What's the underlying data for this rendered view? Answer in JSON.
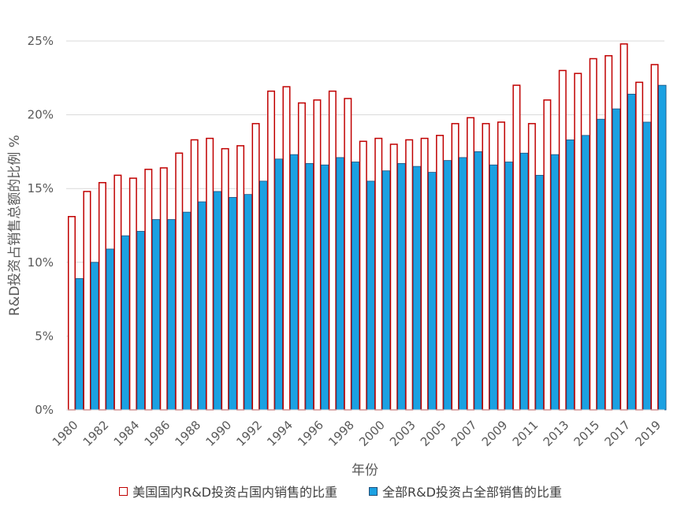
{
  "chart_data": {
    "type": "bar",
    "xlabel": "年份",
    "ylabel": "R&D投资占销售总额的比例 %",
    "ylim": [
      0,
      25
    ],
    "yticks": [
      "0%",
      "5%",
      "10%",
      "15%",
      "20%",
      "25%"
    ],
    "grid": true,
    "legend_position": "bottom",
    "categories": [
      "1980",
      "1981",
      "1982",
      "1983",
      "1984",
      "1985",
      "1986",
      "1987",
      "1988",
      "1989",
      "1990",
      "1991",
      "1992",
      "1993",
      "1994",
      "1995",
      "1996",
      "1997",
      "1998",
      "1999",
      "2000",
      "2002",
      "2003",
      "2004",
      "2005",
      "2006",
      "2007",
      "2008",
      "2009",
      "2010",
      "2011",
      "2012",
      "2013",
      "2014",
      "2015",
      "2016",
      "2017",
      "2018",
      "2019"
    ],
    "tick_labels": [
      "1980",
      "",
      "1982",
      "",
      "1984",
      "",
      "1986",
      "",
      "1988",
      "",
      "1990",
      "",
      "1992",
      "",
      "1994",
      "",
      "1996",
      "",
      "1998",
      "",
      "2000",
      "",
      "2003",
      "",
      "2005",
      "",
      "2007",
      "",
      "2009",
      "",
      "2011",
      "",
      "2013",
      "",
      "2015",
      "",
      "2017",
      "",
      "2019"
    ],
    "series": [
      {
        "name": "美国国内R&D投资占国内销售的比重",
        "style": "outline",
        "color": "#c00000",
        "values": [
          13.1,
          14.8,
          15.4,
          15.9,
          15.7,
          16.3,
          16.4,
          17.4,
          18.3,
          18.4,
          17.7,
          17.9,
          19.4,
          21.6,
          21.9,
          20.8,
          21.0,
          21.6,
          21.1,
          18.2,
          18.4,
          18.0,
          18.3,
          18.4,
          18.6,
          19.4,
          19.8,
          19.4,
          19.5,
          22.0,
          19.4,
          21.0,
          23.0,
          22.8,
          23.8,
          24.0,
          24.8,
          22.2,
          23.4
        ]
      },
      {
        "name": "全部R&D投资占全部销售的比重",
        "style": "filled",
        "color": "#1ba1e2",
        "values": [
          8.9,
          10.0,
          10.9,
          11.8,
          12.1,
          12.9,
          12.9,
          13.4,
          14.1,
          14.8,
          14.4,
          14.6,
          15.5,
          17.0,
          17.3,
          16.7,
          16.6,
          17.1,
          16.8,
          15.5,
          16.2,
          16.7,
          16.5,
          16.1,
          16.9,
          17.1,
          17.5,
          16.6,
          16.8,
          17.4,
          15.9,
          17.3,
          18.3,
          18.6,
          19.7,
          20.4,
          21.4,
          19.5,
          22.0
        ]
      }
    ]
  }
}
